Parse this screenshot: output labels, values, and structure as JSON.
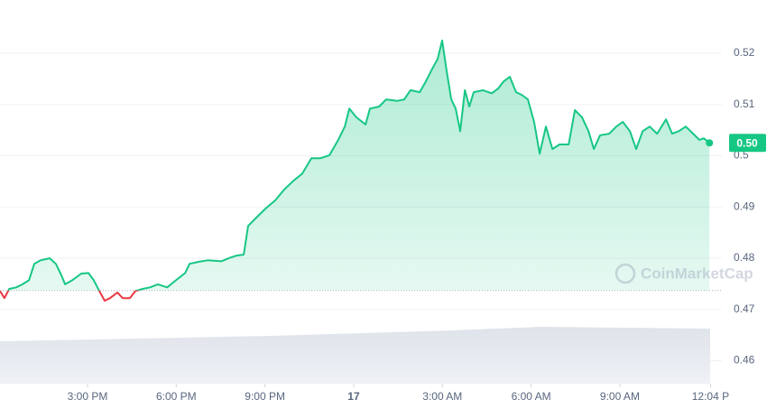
{
  "chart_data": {
    "type": "line",
    "color": "#16c784",
    "below_color": "#ea3943",
    "xlim": [
      12.04,
      36.45
    ],
    "ylim": [
      0.4555,
      0.5304
    ],
    "xticks": [
      {
        "value": 15,
        "label": "3:00 PM"
      },
      {
        "value": 18,
        "label": "6:00 PM"
      },
      {
        "value": 21,
        "label": "9:00 PM"
      },
      {
        "value": 24,
        "label": "17"
      },
      {
        "value": 27,
        "label": "3:00 AM"
      },
      {
        "value": 30,
        "label": "6:00 AM"
      },
      {
        "value": 33,
        "label": "9:00 AM"
      },
      {
        "value": 36.067,
        "label": "12:04 P"
      }
    ],
    "yticks": [
      0.46,
      0.47,
      0.48,
      0.49,
      0.5,
      0.51,
      0.52
    ],
    "grid": true,
    "baseline": 0.4737,
    "price_tag": {
      "value": 0.5025,
      "label": "0.50"
    },
    "watermark": "CoinMarketCap",
    "x": [
      12.04,
      12.19,
      12.35,
      12.59,
      12.8,
      13.02,
      13.2,
      13.41,
      13.72,
      13.93,
      14.12,
      14.24,
      14.48,
      14.79,
      15.03,
      15.21,
      15.4,
      15.58,
      15.76,
      16.01,
      16.19,
      16.43,
      16.62,
      16.86,
      17.11,
      17.38,
      17.69,
      17.99,
      18.3,
      18.45,
      18.75,
      19.06,
      19.52,
      19.82,
      20.04,
      20.28,
      20.43,
      20.74,
      21.04,
      21.35,
      21.65,
      21.96,
      22.26,
      22.57,
      22.87,
      23.18,
      23.48,
      23.7,
      23.85,
      24.09,
      24.4,
      24.55,
      24.86,
      25.1,
      25.47,
      25.71,
      25.92,
      26.23,
      26.44,
      26.63,
      26.84,
      26.99,
      27.15,
      27.3,
      27.45,
      27.6,
      27.76,
      27.91,
      28.06,
      28.37,
      28.67,
      28.88,
      29.07,
      29.28,
      29.49,
      29.68,
      29.89,
      30.1,
      30.29,
      30.5,
      30.72,
      30.96,
      31.27,
      31.48,
      31.72,
      31.94,
      32.12,
      32.33,
      32.64,
      32.88,
      33.1,
      33.34,
      33.55,
      33.77,
      34.01,
      34.26,
      34.56,
      34.77,
      34.99,
      35.23,
      35.48,
      35.69,
      35.84,
      36.03
    ],
    "values": [
      0.4736,
      0.4722,
      0.474,
      0.4743,
      0.4749,
      0.4757,
      0.4789,
      0.4796,
      0.48,
      0.4789,
      0.4766,
      0.4749,
      0.4757,
      0.477,
      0.4771,
      0.4757,
      0.4736,
      0.4717,
      0.4722,
      0.4733,
      0.4722,
      0.4722,
      0.4736,
      0.474,
      0.4743,
      0.4749,
      0.4743,
      0.4757,
      0.4771,
      0.4789,
      0.4793,
      0.4796,
      0.4794,
      0.4801,
      0.4805,
      0.4807,
      0.4863,
      0.4881,
      0.4898,
      0.4913,
      0.4934,
      0.4951,
      0.4965,
      0.4995,
      0.4995,
      0.5001,
      0.5031,
      0.5057,
      0.5092,
      0.5075,
      0.5061,
      0.5092,
      0.5096,
      0.511,
      0.5107,
      0.511,
      0.5128,
      0.5124,
      0.5145,
      0.5167,
      0.5189,
      0.5225,
      0.5163,
      0.511,
      0.5092,
      0.5048,
      0.5128,
      0.5096,
      0.5124,
      0.5128,
      0.5122,
      0.5131,
      0.5145,
      0.5154,
      0.5124,
      0.5119,
      0.511,
      0.5066,
      0.5004,
      0.5057,
      0.5013,
      0.5022,
      0.5022,
      0.5089,
      0.5075,
      0.5048,
      0.5013,
      0.504,
      0.5043,
      0.5057,
      0.5066,
      0.5048,
      0.5013,
      0.5048,
      0.5057,
      0.5043,
      0.5071,
      0.5043,
      0.5048,
      0.5057,
      0.5043,
      0.5031,
      0.5034,
      0.5025
    ]
  }
}
